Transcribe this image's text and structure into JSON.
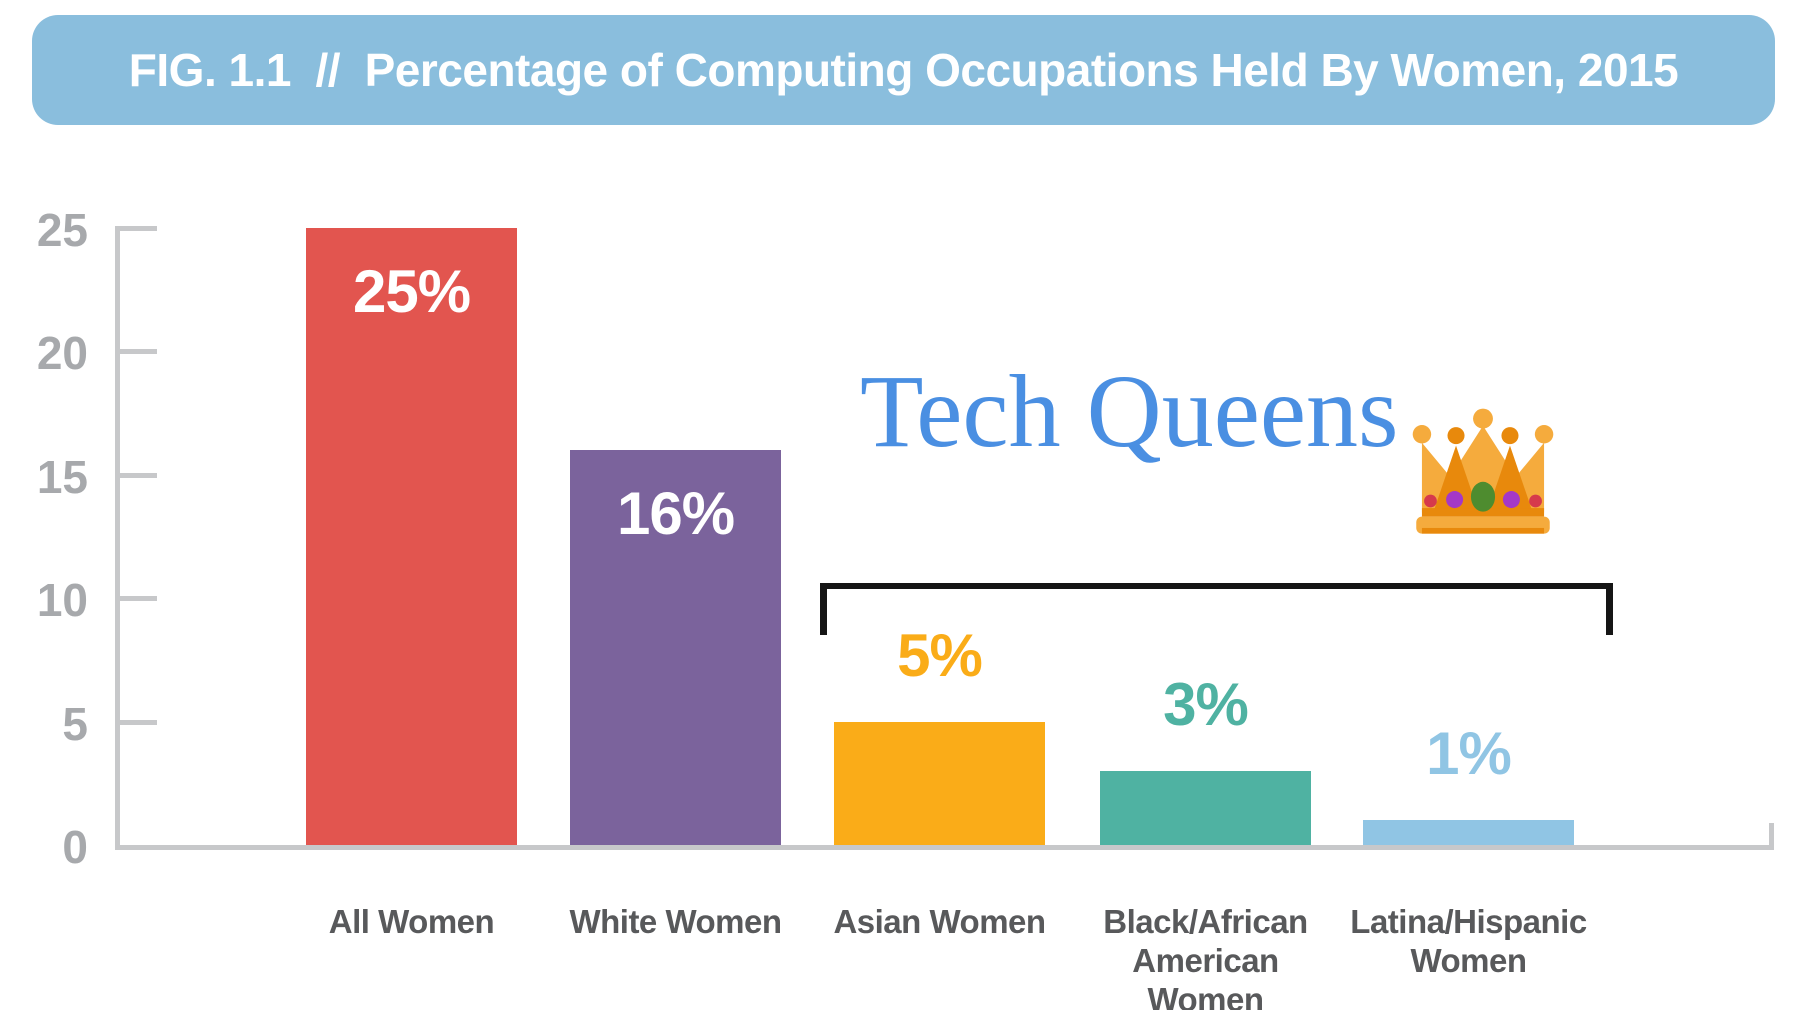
{
  "figure": {
    "title": "FIG. 1.1  //  Percentage of Computing Occupations Held By Women, 2015",
    "title_bg": "#8ABEDD",
    "title_color": "#FFFFFF"
  },
  "annotation": {
    "text": "Tech Queens",
    "icon": "crown-emoji-icon",
    "color": "#4A8FE2",
    "bracket_color": "#151515"
  },
  "chart_data": {
    "type": "bar",
    "title": "FIG. 1.1 // Percentage of Computing Occupations Held By Women, 2015",
    "categories": [
      "All Women",
      "White Women",
      "Asian Women",
      "Black/African American Women",
      "Latina/Hispanic Women"
    ],
    "category_lines": [
      [
        "All Women"
      ],
      [
        "White Women"
      ],
      [
        "Asian Women"
      ],
      [
        "Black/African",
        "American",
        "Women"
      ],
      [
        "Latina/Hispanic",
        "Women"
      ]
    ],
    "values": [
      25,
      16,
      5,
      3,
      1
    ],
    "value_labels": [
      "25%",
      "16%",
      "5%",
      "3%",
      "1%"
    ],
    "bar_colors": [
      "#E2554F",
      "#7B639C",
      "#FAAC18",
      "#4FB2A2",
      "#90C5E4"
    ],
    "value_label_inside": [
      true,
      true,
      false,
      false,
      false
    ],
    "value_label_inside_color": "#FFFFFF",
    "xlabel": "",
    "ylabel": "",
    "ylim": [
      0,
      25
    ],
    "yticks": [
      0,
      5,
      10,
      15,
      20,
      25
    ],
    "grid": false,
    "legend": false,
    "axis_color": "#C7C8CA",
    "tick_label_color": "#A7A9AC",
    "category_label_color": "#58595B",
    "bracket_group": [
      "Asian Women",
      "Black/African American Women",
      "Latina/Hispanic Women"
    ],
    "bracket_label": "Tech Queens"
  }
}
